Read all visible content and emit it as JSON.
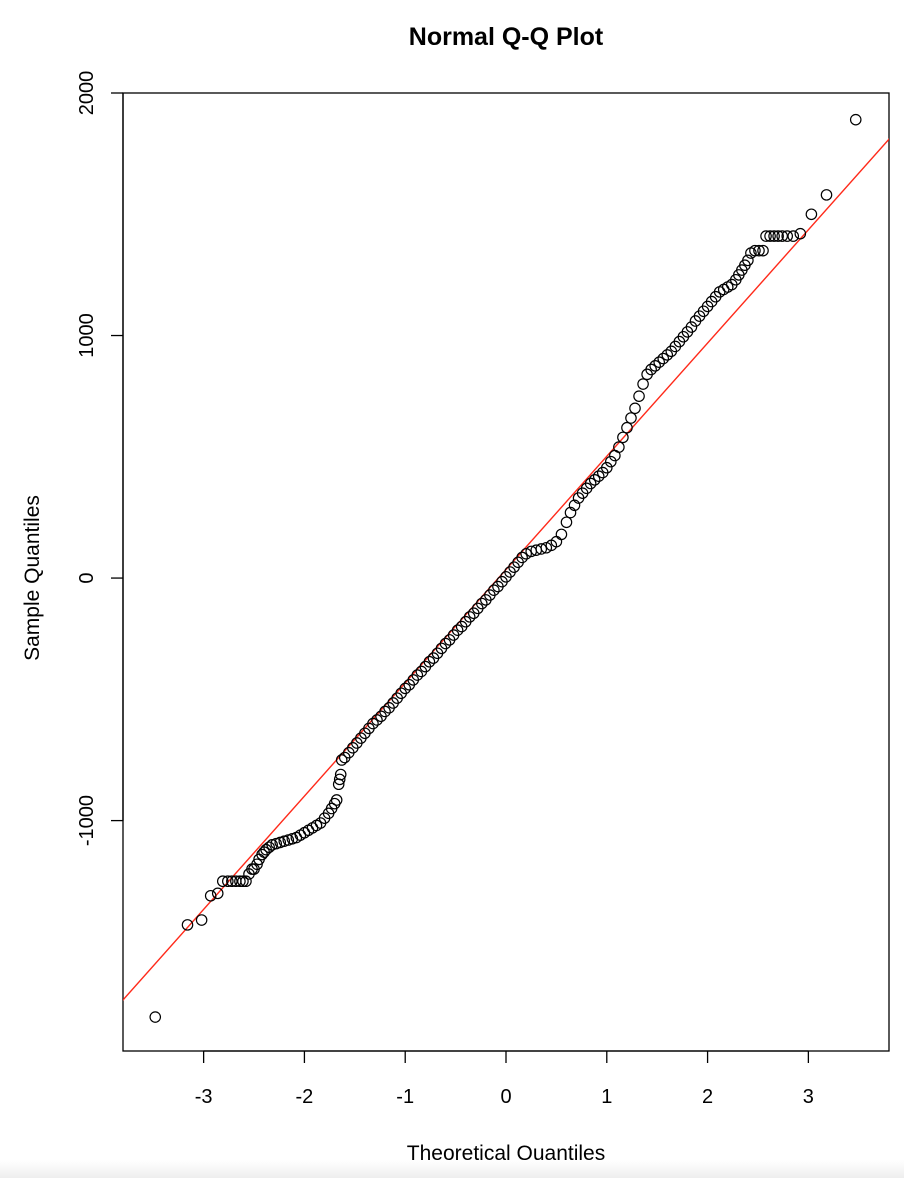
{
  "chart_data": {
    "type": "scatter",
    "title": "Normal Q-Q Plot",
    "xlabel": "Theoretical Quantiles",
    "ylabel": "Sample Quantiles",
    "xlim": [
      -3.8,
      3.8
    ],
    "ylim": [
      -1950,
      2000
    ],
    "x_ticks": [
      -3,
      -2,
      -1,
      0,
      1,
      2,
      3
    ],
    "x_tick_labels": [
      "-3",
      "-2",
      "-1",
      "0",
      "1",
      "2",
      "3"
    ],
    "y_ticks": [
      -1000,
      0,
      1000,
      2000
    ],
    "y_tick_labels": [
      "-1000",
      "0",
      "1000",
      "2000"
    ],
    "grid": false,
    "legend": "none",
    "reference_line": {
      "intercept": 35,
      "slope": 467,
      "color": "#ff2a1a"
    },
    "series": [
      {
        "color": "#000000",
        "points": [
          [
            -3.48,
            -1810
          ],
          [
            -3.16,
            -1430
          ],
          [
            -3.02,
            -1410
          ],
          [
            -2.93,
            -1310
          ],
          [
            -2.86,
            -1300
          ],
          [
            -2.81,
            -1250
          ],
          [
            -2.76,
            -1250
          ],
          [
            -2.72,
            -1250
          ],
          [
            -2.68,
            -1250
          ],
          [
            -2.64,
            -1250
          ],
          [
            -2.61,
            -1250
          ],
          [
            -2.58,
            -1250
          ],
          [
            -2.55,
            -1220
          ],
          [
            -2.52,
            -1200
          ],
          [
            -2.5,
            -1200
          ],
          [
            -2.47,
            -1180
          ],
          [
            -2.45,
            -1160
          ],
          [
            -2.42,
            -1140
          ],
          [
            -2.4,
            -1130
          ],
          [
            -2.38,
            -1120
          ],
          [
            -2.35,
            -1110
          ],
          [
            -2.32,
            -1100
          ],
          [
            -2.28,
            -1095
          ],
          [
            -2.24,
            -1090
          ],
          [
            -2.2,
            -1085
          ],
          [
            -2.16,
            -1080
          ],
          [
            -2.12,
            -1075
          ],
          [
            -2.08,
            -1070
          ],
          [
            -2.04,
            -1060
          ],
          [
            -2.0,
            -1050
          ],
          [
            -1.96,
            -1040
          ],
          [
            -1.92,
            -1030
          ],
          [
            -1.88,
            -1020
          ],
          [
            -1.84,
            -1010
          ],
          [
            -1.8,
            -990
          ],
          [
            -1.76,
            -970
          ],
          [
            -1.73,
            -950
          ],
          [
            -1.7,
            -930
          ],
          [
            -1.68,
            -915
          ],
          [
            -1.66,
            -850
          ],
          [
            -1.65,
            -830
          ],
          [
            -1.64,
            -810
          ],
          [
            -1.63,
            -750
          ],
          [
            -1.6,
            -740
          ],
          [
            -1.56,
            -720
          ],
          [
            -1.52,
            -700
          ],
          [
            -1.48,
            -680
          ],
          [
            -1.44,
            -660
          ],
          [
            -1.4,
            -640
          ],
          [
            -1.36,
            -620
          ],
          [
            -1.32,
            -600
          ],
          [
            -1.28,
            -585
          ],
          [
            -1.24,
            -570
          ],
          [
            -1.2,
            -550
          ],
          [
            -1.16,
            -535
          ],
          [
            -1.12,
            -515
          ],
          [
            -1.08,
            -495
          ],
          [
            -1.04,
            -475
          ],
          [
            -1.0,
            -455
          ],
          [
            -0.96,
            -440
          ],
          [
            -0.92,
            -420
          ],
          [
            -0.88,
            -400
          ],
          [
            -0.84,
            -385
          ],
          [
            -0.8,
            -365
          ],
          [
            -0.76,
            -345
          ],
          [
            -0.72,
            -330
          ],
          [
            -0.68,
            -310
          ],
          [
            -0.64,
            -290
          ],
          [
            -0.6,
            -270
          ],
          [
            -0.56,
            -255
          ],
          [
            -0.52,
            -235
          ],
          [
            -0.48,
            -215
          ],
          [
            -0.44,
            -200
          ],
          [
            -0.4,
            -180
          ],
          [
            -0.36,
            -160
          ],
          [
            -0.32,
            -145
          ],
          [
            -0.28,
            -125
          ],
          [
            -0.24,
            -105
          ],
          [
            -0.2,
            -90
          ],
          [
            -0.16,
            -70
          ],
          [
            -0.12,
            -50
          ],
          [
            -0.08,
            -35
          ],
          [
            -0.04,
            -15
          ],
          [
            0.0,
            5
          ],
          [
            0.04,
            25
          ],
          [
            0.08,
            45
          ],
          [
            0.12,
            65
          ],
          [
            0.16,
            85
          ],
          [
            0.2,
            100
          ],
          [
            0.25,
            110
          ],
          [
            0.3,
            115
          ],
          [
            0.35,
            120
          ],
          [
            0.4,
            125
          ],
          [
            0.45,
            135
          ],
          [
            0.5,
            150
          ],
          [
            0.55,
            180
          ],
          [
            0.6,
            230
          ],
          [
            0.64,
            270
          ],
          [
            0.68,
            300
          ],
          [
            0.72,
            330
          ],
          [
            0.76,
            350
          ],
          [
            0.8,
            370
          ],
          [
            0.84,
            390
          ],
          [
            0.88,
            405
          ],
          [
            0.92,
            420
          ],
          [
            0.96,
            435
          ],
          [
            1.0,
            455
          ],
          [
            1.04,
            480
          ],
          [
            1.08,
            505
          ],
          [
            1.12,
            540
          ],
          [
            1.16,
            580
          ],
          [
            1.2,
            620
          ],
          [
            1.24,
            660
          ],
          [
            1.28,
            700
          ],
          [
            1.32,
            750
          ],
          [
            1.36,
            800
          ],
          [
            1.4,
            840
          ],
          [
            1.44,
            860
          ],
          [
            1.48,
            875
          ],
          [
            1.52,
            890
          ],
          [
            1.56,
            905
          ],
          [
            1.6,
            920
          ],
          [
            1.64,
            935
          ],
          [
            1.68,
            955
          ],
          [
            1.72,
            975
          ],
          [
            1.76,
            995
          ],
          [
            1.8,
            1015
          ],
          [
            1.84,
            1035
          ],
          [
            1.88,
            1060
          ],
          [
            1.92,
            1080
          ],
          [
            1.96,
            1100
          ],
          [
            2.0,
            1120
          ],
          [
            2.04,
            1140
          ],
          [
            2.08,
            1160
          ],
          [
            2.12,
            1180
          ],
          [
            2.16,
            1190
          ],
          [
            2.2,
            1200
          ],
          [
            2.24,
            1210
          ],
          [
            2.28,
            1230
          ],
          [
            2.31,
            1250
          ],
          [
            2.34,
            1270
          ],
          [
            2.37,
            1290
          ],
          [
            2.4,
            1310
          ],
          [
            2.43,
            1340
          ],
          [
            2.47,
            1350
          ],
          [
            2.51,
            1350
          ],
          [
            2.55,
            1350
          ],
          [
            2.58,
            1410
          ],
          [
            2.62,
            1410
          ],
          [
            2.66,
            1410
          ],
          [
            2.7,
            1410
          ],
          [
            2.74,
            1410
          ],
          [
            2.79,
            1410
          ],
          [
            2.85,
            1410
          ],
          [
            2.92,
            1420
          ],
          [
            3.03,
            1500
          ],
          [
            3.18,
            1580
          ],
          [
            3.47,
            1890
          ]
        ]
      }
    ]
  }
}
